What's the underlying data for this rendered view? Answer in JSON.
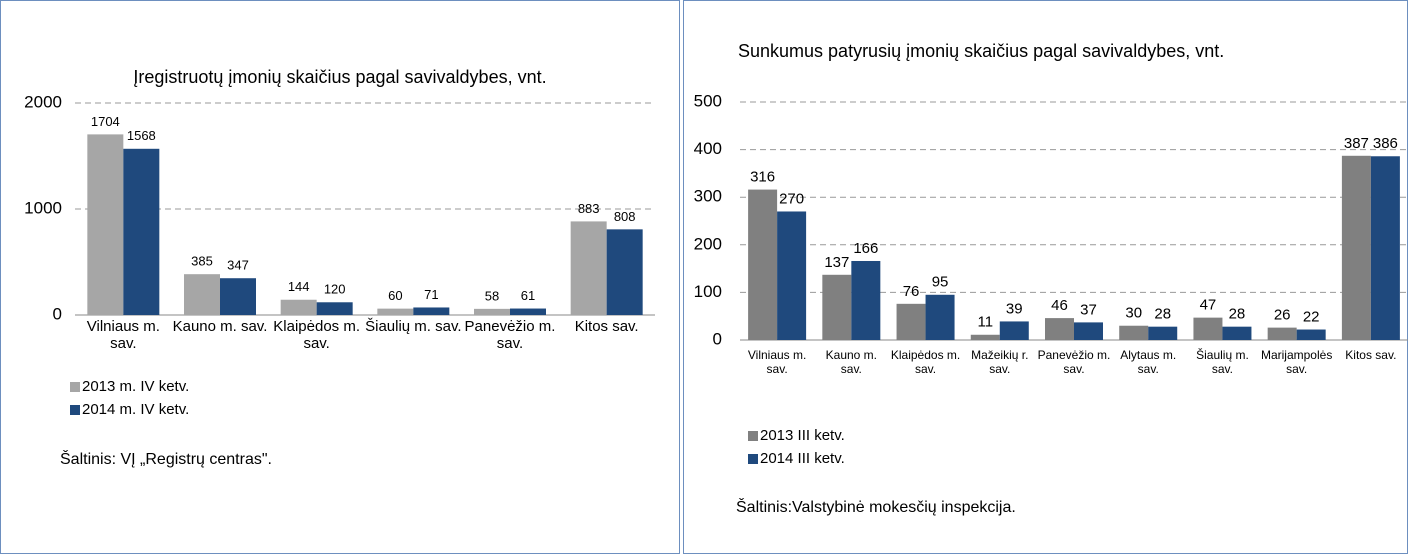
{
  "chart_data": [
    {
      "type": "bar",
      "title": "Įregistruotų įmonių skaičius pagal savivaldybes, vnt.",
      "categories": [
        "Vilniaus m. sav.",
        "Kauno m. sav.",
        "Klaipėdos m. sav.",
        "Šiaulių m. sav.",
        "Panevėžio m. sav.",
        "Kitos sav."
      ],
      "series": [
        {
          "name": "2013 m. IV ketv.",
          "color": "#a6a6a6",
          "values": [
            1704,
            385,
            144,
            60,
            58,
            883
          ]
        },
        {
          "name": "2014 m. IV ketv.",
          "color": "#1f497d",
          "values": [
            1568,
            347,
            120,
            71,
            61,
            808
          ]
        }
      ],
      "ylim": [
        0,
        2000
      ],
      "yticks": [
        0,
        1000,
        2000
      ],
      "grid": true,
      "source": "Šaltinis: VĮ „Registrų centras\"."
    },
    {
      "type": "bar",
      "title": "Sunkumus patyrusių įmonių skaičius pagal savivaldybes, vnt.",
      "categories": [
        "Vilniaus m. sav.",
        "Kauno m. sav.",
        "Klaipėdos m. sav.",
        "Mažeikių r. sav.",
        "Panevėžio m. sav.",
        "Alytaus m. sav.",
        "Šiaulių m. sav.",
        "Marijampolės sav.",
        "Kitos sav."
      ],
      "series": [
        {
          "name": "2013 III ketv.",
          "color": "#808080",
          "values": [
            316,
            137,
            76,
            11,
            46,
            30,
            47,
            26,
            387
          ]
        },
        {
          "name": "2014 III ketv.",
          "color": "#1f497d",
          "values": [
            270,
            166,
            95,
            39,
            37,
            28,
            28,
            22,
            386
          ]
        }
      ],
      "ylim": [
        0,
        500
      ],
      "yticks": [
        0,
        100,
        200,
        300,
        400,
        500
      ],
      "grid": true,
      "source": "Šaltinis:Valstybinė mokesčių inspekcija."
    }
  ]
}
